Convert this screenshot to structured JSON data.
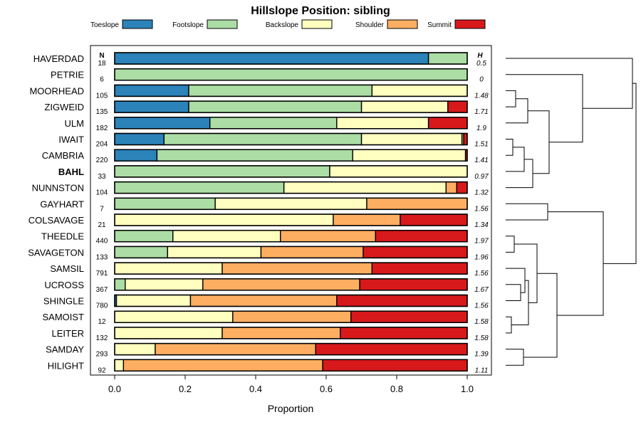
{
  "chart_data": {
    "type": "bar",
    "subtype": "stacked-horizontal-proportion",
    "title": "Hillslope Position: sibling",
    "xlabel": "Proportion",
    "ylabel": "",
    "xlim": [
      0,
      1
    ],
    "x_ticks": [
      "0.0",
      "0.2",
      "0.4",
      "0.6",
      "0.8",
      "1.0"
    ],
    "n_header": "N",
    "h_header": "H",
    "highlighted_category": "BAHL",
    "legend": [
      {
        "name": "Toeslope",
        "color": "#2b83ba"
      },
      {
        "name": "Footslope",
        "color": "#abdda4"
      },
      {
        "name": "Backslope",
        "color": "#ffffbf"
      },
      {
        "name": "Shoulder",
        "color": "#fdae61"
      },
      {
        "name": "Summit",
        "color": "#d7191c"
      }
    ],
    "categories": [
      "HAVERDAD",
      "PETRIE",
      "MOORHEAD",
      "ZIGWEID",
      "ULM",
      "IWAIT",
      "CAMBRIA",
      "BAHL",
      "NUNNSTON",
      "GAYHART",
      "COLSAVAGE",
      "THEEDLE",
      "SAVAGETON",
      "SAMSIL",
      "UCROSS",
      "SHINGLE",
      "SAMOIST",
      "LEITER",
      "SAMDAY",
      "HILIGHT"
    ],
    "N": [
      "18",
      "6",
      "105",
      "135",
      "182",
      "204",
      "220",
      "33",
      "104",
      "7",
      "21",
      "440",
      "133",
      "791",
      "367",
      "780",
      "12",
      "132",
      "293",
      "92"
    ],
    "H": [
      "0.5",
      "0",
      "1.48",
      "1.71",
      "1.9",
      "1.51",
      "1.41",
      "0.97",
      "1.32",
      "1.56",
      "1.34",
      "1.97",
      "1.96",
      "1.56",
      "1.67",
      "1.56",
      "1.58",
      "1.58",
      "1.39",
      "1.11"
    ],
    "series": [
      {
        "name": "Toeslope",
        "values": [
          0.89,
          0,
          0.21,
          0.21,
          0.27,
          0.14,
          0.12,
          0,
          0,
          0,
          0,
          0,
          0,
          0,
          0,
          0.005,
          0,
          0,
          0,
          0
        ]
      },
      {
        "name": "Footslope",
        "values": [
          0.11,
          1.0,
          0.52,
          0.49,
          0.36,
          0.56,
          0.555,
          0.61,
          0.48,
          0.285,
          0,
          0.165,
          0.15,
          0,
          0.03,
          0,
          0,
          0,
          0,
          0
        ]
      },
      {
        "name": "Backslope",
        "values": [
          0,
          0,
          0.27,
          0.245,
          0.26,
          0.285,
          0.32,
          0.39,
          0.46,
          0.43,
          0.62,
          0.305,
          0.265,
          0.305,
          0.22,
          0.21,
          0.335,
          0.305,
          0.115,
          0.025
        ]
      },
      {
        "name": "Shoulder",
        "values": [
          0,
          0,
          0,
          0,
          0,
          0.005,
          0,
          0,
          0.03,
          0.285,
          0.19,
          0.27,
          0.29,
          0.425,
          0.445,
          0.415,
          0.335,
          0.335,
          0.455,
          0.565
        ]
      },
      {
        "name": "Summit",
        "values": [
          0,
          0,
          0,
          0.055,
          0.11,
          0.01,
          0.005,
          0,
          0.03,
          0,
          0.19,
          0.26,
          0.295,
          0.27,
          0.305,
          0.37,
          0.33,
          0.36,
          0.43,
          0.41
        ]
      }
    ],
    "dendrogram": {
      "type": "hierarchical-clustering",
      "leaves": [
        "HAVERDAD",
        "PETRIE",
        "MOORHEAD",
        "ZIGWEID",
        "ULM",
        "IWAIT",
        "CAMBRIA",
        "BAHL",
        "NUNNSTON",
        "GAYHART",
        "COLSAVAGE",
        "THEEDLE",
        "SAVAGETON",
        "SAMSIL",
        "UCROSS",
        "SHINGLE",
        "SAMOIST",
        "LEITER",
        "SAMDAY",
        "HILIGHT"
      ]
    }
  }
}
